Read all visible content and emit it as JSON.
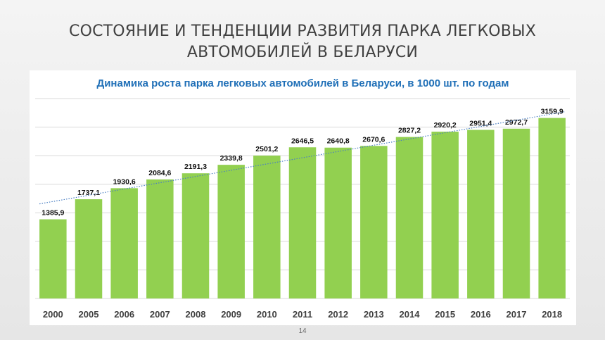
{
  "slide": {
    "title_line1": "СОСТОЯНИЕ И ТЕНДЕНЦИИ РАЗВИТИЯ ПАРКА ЛЕГКОВЫХ",
    "title_line2": "АВТОМОБИЛЕЙ В БЕЛАРУСИ",
    "page_number": "14"
  },
  "colors": {
    "bar": "#92d050",
    "title": "#1f6fb7",
    "trendline": "#4a7ec2",
    "gridline": "#d9d9d9"
  },
  "chart_data": {
    "type": "bar",
    "title": "Динамика роста парка легковых автомобилей в Беларуси, в 1000 шт. по годам",
    "categories": [
      "2000",
      "2005",
      "2006",
      "2007",
      "2008",
      "2009",
      "2010",
      "2011",
      "2012",
      "2013",
      "2014",
      "2015",
      "2016",
      "2017",
      "2018"
    ],
    "values": [
      1385.9,
      1737.1,
      1930.6,
      2084.6,
      2191.3,
      2339.8,
      2501.2,
      2646.5,
      2640.8,
      2670.6,
      2827.2,
      2920.2,
      2951.4,
      2972.7,
      3159.9
    ],
    "value_labels": [
      "1385,9",
      "1737,1",
      "1930,6",
      "2084,6",
      "2191,3",
      "2339,8",
      "2501,2",
      "2646,5",
      "2640,8",
      "2670,6",
      "2827,2",
      "2920,2",
      "2951,4",
      "2972,7",
      "3159,9"
    ],
    "ylim": [
      0,
      3500
    ],
    "grid": true,
    "trendline": "linear",
    "xlabel": "",
    "ylabel": ""
  }
}
